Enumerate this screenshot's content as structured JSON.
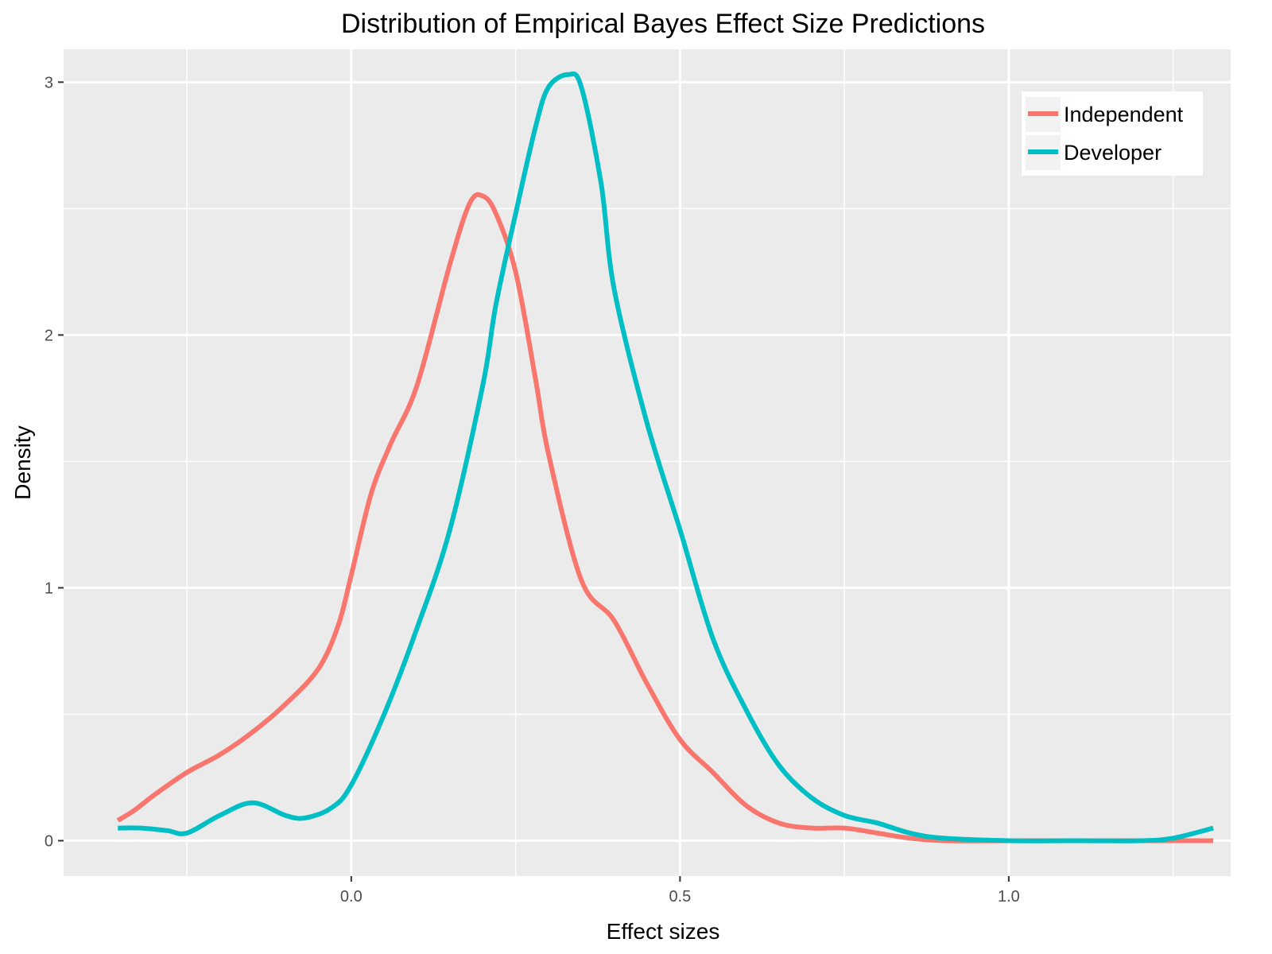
{
  "chart_data": {
    "type": "line",
    "title": "Distribution of Empirical Bayes Effect Size Predictions",
    "xlabel": "Effect sizes",
    "ylabel": "Density",
    "xlim": [
      -0.4375,
      1.3375
    ],
    "ylim": [
      -0.14,
      3.13
    ],
    "x_ticks": [
      0.0,
      0.5,
      1.0
    ],
    "x_tick_labels": [
      "0.0",
      "0.5",
      "1.0"
    ],
    "y_ticks": [
      0,
      1,
      2,
      3
    ],
    "y_tick_labels": [
      "0",
      "1",
      "2",
      "3"
    ],
    "x_minor_gridlines": [
      -0.25,
      0.25,
      0.75,
      1.25
    ],
    "y_minor_gridlines": [
      0.5,
      1.5,
      2.5
    ],
    "grid": true,
    "background": "#ebebeb",
    "legend_position": "top-right",
    "series": [
      {
        "name": "Independent",
        "color": "#f8766d",
        "x": [
          -0.355,
          -0.33,
          -0.3,
          -0.25,
          -0.2,
          -0.15,
          -0.1,
          -0.05,
          -0.02,
          0.0,
          0.03,
          0.06,
          0.1,
          0.15,
          0.18,
          0.2,
          0.22,
          0.25,
          0.28,
          0.3,
          0.35,
          0.4,
          0.45,
          0.5,
          0.55,
          0.6,
          0.65,
          0.7,
          0.75,
          0.8,
          0.85,
          0.9,
          1.0,
          1.1,
          1.2,
          1.311
        ],
        "y": [
          0.08,
          0.12,
          0.18,
          0.27,
          0.34,
          0.43,
          0.54,
          0.68,
          0.85,
          1.05,
          1.37,
          1.57,
          1.8,
          2.28,
          2.52,
          2.55,
          2.48,
          2.25,
          1.83,
          1.53,
          1.03,
          0.87,
          0.62,
          0.4,
          0.27,
          0.14,
          0.07,
          0.05,
          0.05,
          0.03,
          0.01,
          0.0,
          0.0,
          0.0,
          0.0,
          0.0
        ]
      },
      {
        "name": "Developer",
        "color": "#00bfc4",
        "x": [
          -0.355,
          -0.32,
          -0.28,
          -0.25,
          -0.2,
          -0.15,
          -0.1,
          -0.07,
          -0.03,
          0.0,
          0.05,
          0.1,
          0.15,
          0.2,
          0.22,
          0.25,
          0.28,
          0.3,
          0.33,
          0.35,
          0.38,
          0.4,
          0.45,
          0.5,
          0.55,
          0.6,
          0.65,
          0.7,
          0.75,
          0.8,
          0.85,
          0.9,
          1.0,
          1.1,
          1.2,
          1.25,
          1.311
        ],
        "y": [
          0.05,
          0.05,
          0.04,
          0.03,
          0.1,
          0.15,
          0.1,
          0.09,
          0.13,
          0.22,
          0.5,
          0.84,
          1.23,
          1.8,
          2.12,
          2.48,
          2.82,
          2.98,
          3.03,
          2.98,
          2.6,
          2.18,
          1.65,
          1.23,
          0.8,
          0.52,
          0.3,
          0.17,
          0.1,
          0.07,
          0.03,
          0.01,
          0.0,
          0.0,
          0.0,
          0.01,
          0.05
        ]
      }
    ]
  }
}
